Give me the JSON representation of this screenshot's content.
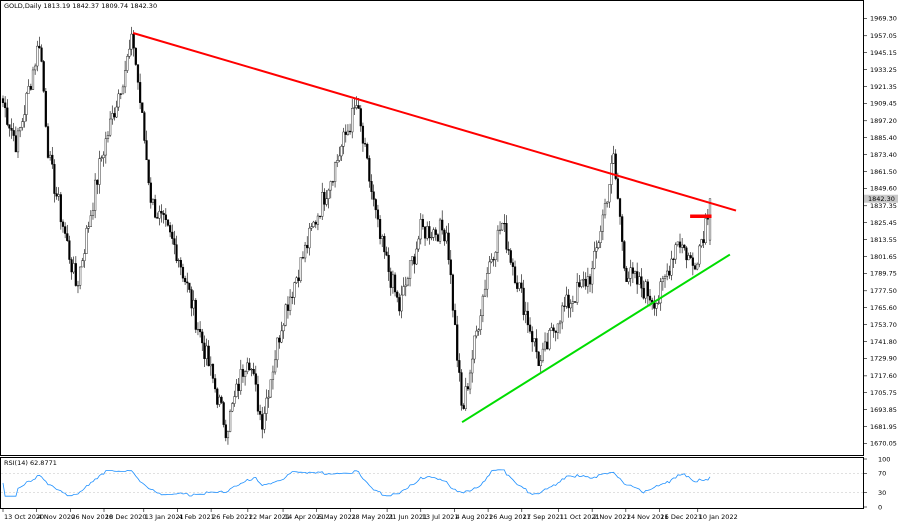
{
  "header": {
    "main_info": "GOLD,Daily  1813.19 1842.37 1809.74 1842.30",
    "rsi_info": "RSI(14) 62.8771"
  },
  "colors": {
    "bull": "#000000",
    "bear": "#000000",
    "resistance_line": "#ff0000",
    "support_line": "#00dd00",
    "marker": "#ff0000",
    "rsi_line": "#1e90ff",
    "rsi_level": "#c0c0c0",
    "current_price_box": "#c8c8c8"
  },
  "chart_data": [
    {
      "type": "candlestick",
      "symbol": "GOLD",
      "timeframe": "Daily",
      "ohlc_last": {
        "open": 1813.19,
        "high": 1842.37,
        "low": 1809.74,
        "close": 1842.3
      },
      "y_range": [
        1664.0,
        1978.0
      ],
      "y_ticks": [
        "1969.30",
        "1957.05",
        "1945.15",
        "1933.25",
        "1921.35",
        "1909.45",
        "1897.20",
        "1885.40",
        "1873.40",
        "1861.50",
        "1849.60",
        "1837.35",
        "1825.45",
        "1813.55",
        "1801.65",
        "1789.75",
        "1777.50",
        "1765.60",
        "1753.70",
        "1741.80",
        "1729.90",
        "1717.60",
        "1705.75",
        "1693.85",
        "1681.95",
        "1670.05"
      ],
      "current_price_label": "1842.30",
      "x_labels": [
        "13 Oct 2020",
        "4 Nov 2020",
        "26 Nov 2020",
        "18 Dec 2020",
        "13 Jan 2021",
        "4 Feb 2021",
        "26 Feb 2021",
        "22 Mar 2021",
        "14 Apr 2021",
        "6 May 2021",
        "28 May 2021",
        "21 Jun 2021",
        "13 Jul 2021",
        "4 Aug 2021",
        "26 Aug 2021",
        "17 Sep 2021",
        "11 Oct 2021",
        "2 Nov 2021",
        "24 Nov 2021",
        "16 Dec 2021",
        "10 Jan 2022"
      ],
      "key_closes": [
        {
          "date": "13 Oct 2020",
          "close": 1910
        },
        {
          "date": "22 Oct 2020",
          "close": 1880
        },
        {
          "date": "6 Nov 2020",
          "close": 1955
        },
        {
          "date": "12 Nov 2020",
          "close": 1870
        },
        {
          "date": "30 Nov 2020",
          "close": 1780
        },
        {
          "date": "16 Dec 2020",
          "close": 1870
        },
        {
          "date": "6 Jan 2021",
          "close": 1955
        },
        {
          "date": "18 Jan 2021",
          "close": 1840
        },
        {
          "date": "4 Feb 2021",
          "close": 1805
        },
        {
          "date": "8 Mar 2021",
          "close": 1680
        },
        {
          "date": "22 Mar 2021",
          "close": 1735
        },
        {
          "date": "31 Mar 2021",
          "close": 1685
        },
        {
          "date": "14 Apr 2021",
          "close": 1760
        },
        {
          "date": "6 May 2021",
          "close": 1830
        },
        {
          "date": "1 Jun 2021",
          "close": 1908
        },
        {
          "date": "16 Jun 2021",
          "close": 1815
        },
        {
          "date": "29 Jun 2021",
          "close": 1765
        },
        {
          "date": "13 Jul 2021",
          "close": 1820
        },
        {
          "date": "30 Jul 2021",
          "close": 1820
        },
        {
          "date": "9 Aug 2021",
          "close": 1690
        },
        {
          "date": "26 Aug 2021",
          "close": 1795
        },
        {
          "date": "4 Sep 2021",
          "close": 1825
        },
        {
          "date": "29 Sep 2021",
          "close": 1725
        },
        {
          "date": "11 Oct 2021",
          "close": 1760
        },
        {
          "date": "2 Nov 2021",
          "close": 1790
        },
        {
          "date": "16 Nov 2021",
          "close": 1870
        },
        {
          "date": "24 Nov 2021",
          "close": 1790
        },
        {
          "date": "15 Dec 2021",
          "close": 1770
        },
        {
          "date": "28 Dec 2021",
          "close": 1815
        },
        {
          "date": "7 Jan 2022",
          "close": 1795
        },
        {
          "date": "14 Jan 2022",
          "close": 1820
        },
        {
          "date": "18 Jan 2022",
          "close": 1842
        }
      ],
      "trendlines": [
        {
          "name": "resistance",
          "color": "red",
          "from": {
            "date": "6 Jan 2021",
            "price": 1959
          },
          "to": {
            "date": "4 Feb 2022",
            "price": 1834
          }
        },
        {
          "name": "support",
          "color": "green",
          "from": {
            "date": "9 Aug 2021",
            "price": 1685
          },
          "to": {
            "date": "31 Jan 2022",
            "price": 1803
          }
        }
      ],
      "horizontal_marker": {
        "price": 1830,
        "from": "5 Jan 2022",
        "to": "19 Jan 2022",
        "color": "red"
      }
    },
    {
      "type": "line",
      "indicator": "RSI(14)",
      "y_range": [
        0,
        100
      ],
      "y_ticks": [
        "100",
        "70",
        "30",
        "0"
      ],
      "levels": [
        70,
        30
      ],
      "last_value": 62.8771
    }
  ]
}
